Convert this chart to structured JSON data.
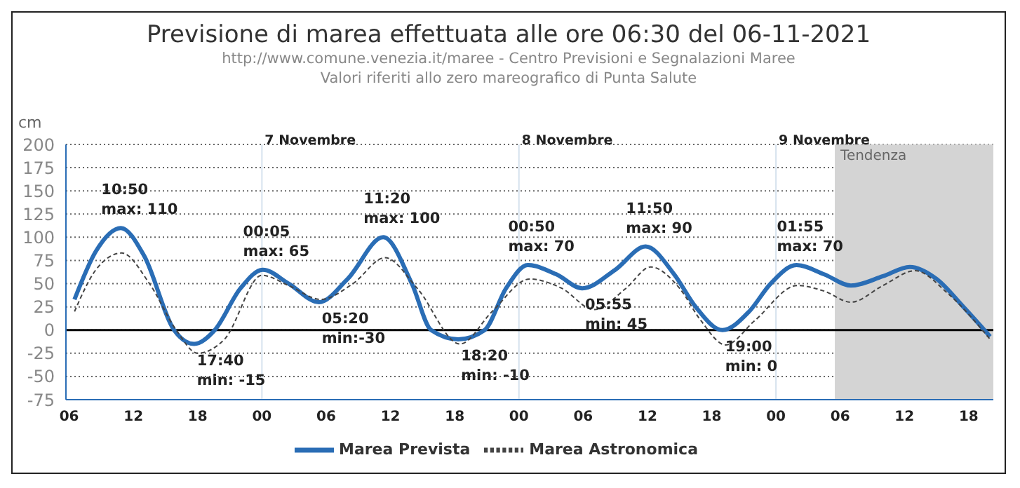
{
  "chart_data": {
    "type": "line",
    "title": "Previsione di marea effettuata alle ore 06:30 del 06-11-2021",
    "subtitle": "http://www.comune.venezia.it/maree - Centro Previsioni e Segnalazioni Maree\nValori riferiti allo zero mareografico di Punta Salute",
    "ylabel": "cm",
    "series": [
      {
        "name": "Marea Prevista",
        "color": "#2a6db5",
        "line_style": "solid",
        "x": [
          6.5,
          8.5,
          10.83,
          13,
          15.8,
          17.67,
          19.6,
          22,
          24.08,
          26.5,
          29.33,
          32,
          35.33,
          38,
          39.8,
          42.33,
          44.8,
          46.8,
          48.83,
          51.5,
          53.92,
          57,
          59.83,
          62.5,
          64.5,
          67,
          69.5,
          71.5,
          73.92,
          76.5,
          79,
          82,
          84.5,
          87,
          89.5,
          92
        ],
        "values": [
          33,
          85,
          110,
          80,
          0,
          -15,
          0,
          45,
          65,
          50,
          30,
          55,
          100,
          50,
          0,
          -10,
          0,
          45,
          70,
          60,
          45,
          65,
          90,
          60,
          25,
          0,
          20,
          50,
          70,
          60,
          48,
          58,
          68,
          55,
          25,
          -7
        ]
      },
      {
        "name": "Marea Astronomica",
        "color": "#444444",
        "line_style": "dashed",
        "x": [
          6.5,
          8.5,
          10.9,
          13.5,
          16,
          18,
          20.5,
          24,
          26.5,
          29.5,
          32.5,
          35.5,
          38.5,
          42.5,
          45.5,
          49,
          52,
          55,
          58,
          60.3,
          63,
          65,
          67.3,
          70,
          74,
          76.5,
          79,
          82,
          85,
          88,
          92
        ],
        "values": [
          20,
          65,
          83,
          50,
          0,
          -25,
          -10,
          59,
          48,
          33,
          50,
          78,
          45,
          -15,
          20,
          55,
          45,
          22,
          45,
          68,
          45,
          10,
          -16,
          10,
          48,
          42,
          30,
          48,
          64,
          40,
          -10
        ]
      }
    ],
    "xlim": [
      5.7,
      92.3
    ],
    "xticks": [
      {
        "value": 6,
        "label": "06"
      },
      {
        "value": 12,
        "label": "12"
      },
      {
        "value": 18,
        "label": "18"
      },
      {
        "value": 24,
        "label": "00"
      },
      {
        "value": 30,
        "label": "06"
      },
      {
        "value": 36,
        "label": "12"
      },
      {
        "value": 42,
        "label": "18"
      },
      {
        "value": 48,
        "label": "00"
      },
      {
        "value": 54,
        "label": "06"
      },
      {
        "value": 60,
        "label": "12"
      },
      {
        "value": 66,
        "label": "18"
      },
      {
        "value": 72,
        "label": "00"
      },
      {
        "value": 78,
        "label": "06"
      },
      {
        "value": 84,
        "label": "12"
      },
      {
        "value": 90,
        "label": "18"
      }
    ],
    "ylim": [
      -75,
      200
    ],
    "yticks": [
      -75,
      -50,
      -25,
      0,
      25,
      50,
      75,
      100,
      125,
      150,
      175,
      200
    ],
    "grid": "y",
    "legend": "bottom",
    "ref_lines": [
      {
        "axis": "x",
        "value": 24,
        "label": "7 Novembre",
        "color": "#d6e2ee"
      },
      {
        "axis": "x",
        "value": 48,
        "label": "8 Novembre",
        "color": "#d6e2ee"
      },
      {
        "axis": "x",
        "value": 72,
        "label": "9 Novembre",
        "color": "#d6e2ee"
      },
      {
        "axis": "y",
        "value": 0,
        "color": "#000000"
      }
    ],
    "bands": [
      {
        "axis": "x",
        "from": 77.5,
        "to": 92.3,
        "label": "Tendenza",
        "color": "#d4d4d4"
      }
    ],
    "annotations": [
      {
        "text": "10:50\nmax: 110",
        "x": 10.83,
        "y": 110
      },
      {
        "text": "17:40\nmin: -15",
        "x": 17.67,
        "y": -15
      },
      {
        "text": "00:05\nmax: 65",
        "x": 24.08,
        "y": 65
      },
      {
        "text": "05:20\nmin:-30",
        "x": 29.33,
        "y": 30
      },
      {
        "text": "11:20\nmax: 100",
        "x": 35.33,
        "y": 100
      },
      {
        "text": "18:20\nmin: -10",
        "x": 42.33,
        "y": -10
      },
      {
        "text": "00:50\nmax: 70",
        "x": 48.83,
        "y": 70
      },
      {
        "text": "05:55\nmin: 45",
        "x": 53.92,
        "y": 45
      },
      {
        "text": "11:50\nmax: 90",
        "x": 59.83,
        "y": 90
      },
      {
        "text": "19:00\nmin: 0",
        "x": 67,
        "y": 0
      },
      {
        "text": "01:55\nmax: 70",
        "x": 73.92,
        "y": 70
      }
    ]
  }
}
